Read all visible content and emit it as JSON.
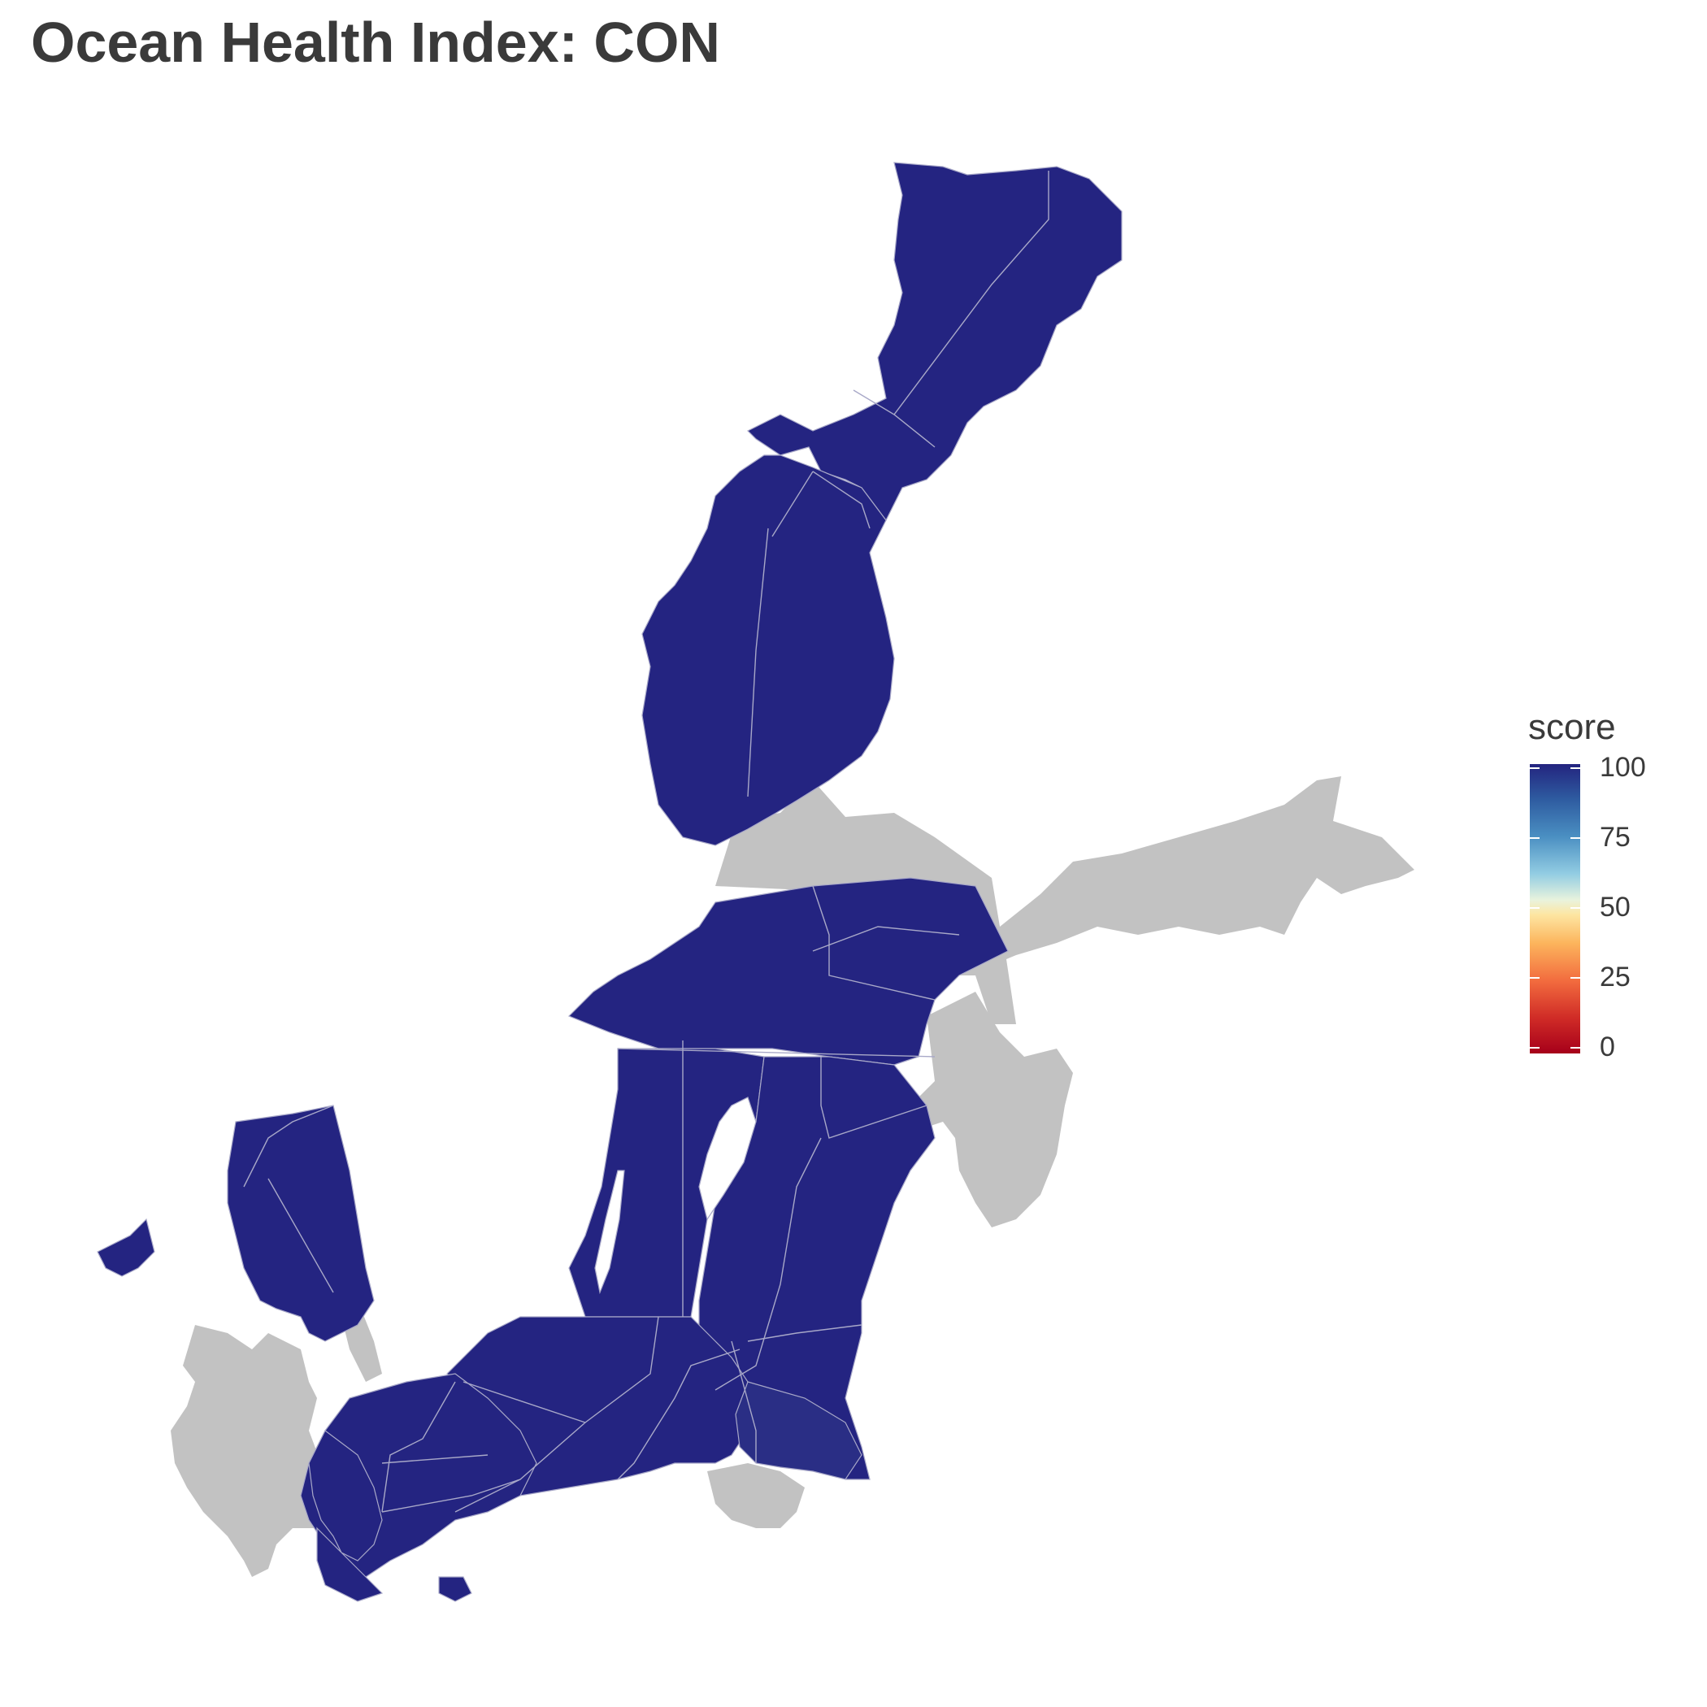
{
  "title": "Ocean Health Index: CON",
  "legend": {
    "title": "score",
    "ticks": [
      "100",
      "75",
      "50",
      "25",
      "0"
    ],
    "colors": [
      "#23247f",
      "#4a8fc2",
      "#fde6a2",
      "#f26b3e",
      "#a6001a"
    ]
  },
  "map": {
    "sea_color": "#242481",
    "land_color": "#c2c2c2",
    "border_color": "#a8a8c8"
  }
}
